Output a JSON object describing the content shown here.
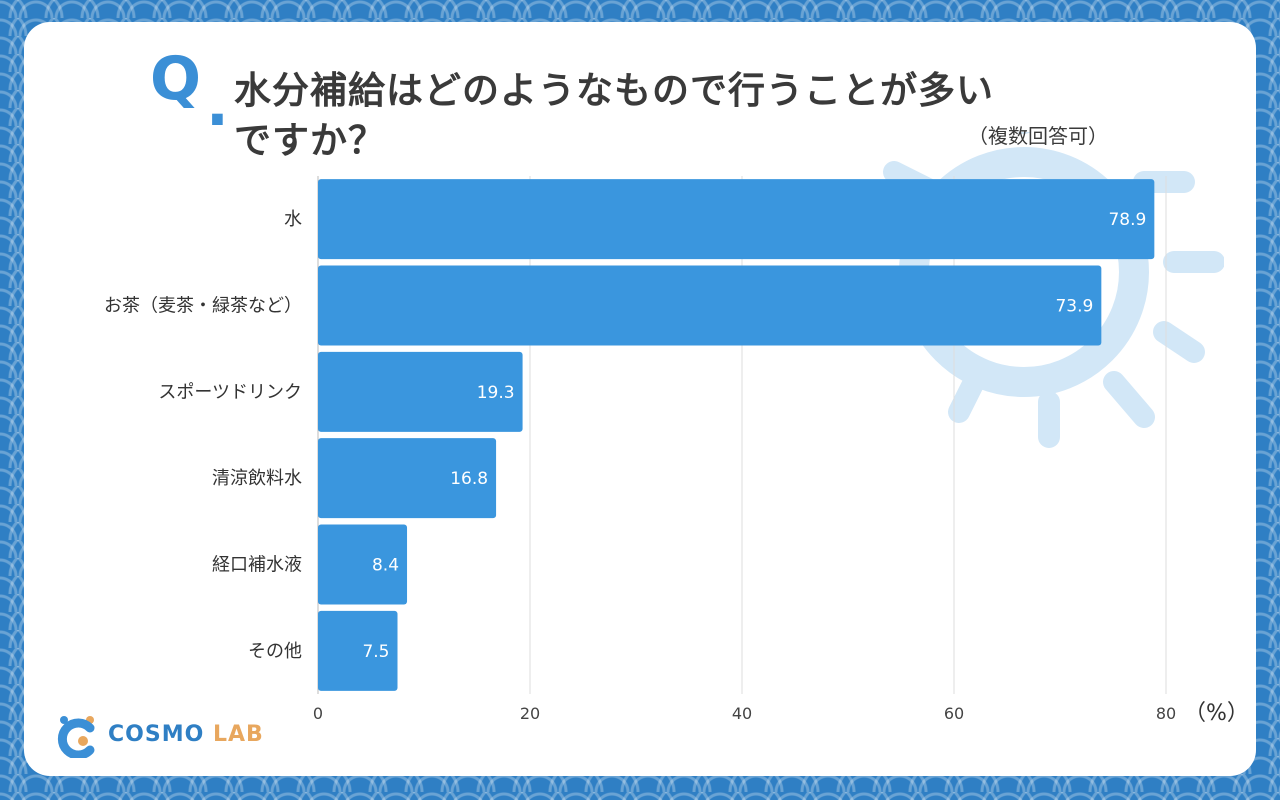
{
  "question": {
    "q_mark": "Q",
    "line1": "水分補給はどのようなもので行うことが多い",
    "line2": "ですか？",
    "note": "（複数回答可）"
  },
  "chart_data": {
    "type": "bar",
    "orientation": "horizontal",
    "categories": [
      "水",
      "お茶（麦茶・緑茶など）",
      "スポーツドリンク",
      "清涼飲料水",
      "経口補水液",
      "その他"
    ],
    "values": [
      78.9,
      73.9,
      19.3,
      16.8,
      8.4,
      7.5
    ],
    "xlim": [
      0,
      80
    ],
    "xticks": [
      "0",
      "20",
      "40",
      "60",
      "80"
    ],
    "unit": "（%）",
    "bar_color": "#3a96de",
    "grid": true
  },
  "logo": {
    "part1": "COSMO",
    "part2": "LAB",
    "primary_color": "#2f7fc4",
    "accent_color": "#e8a75e"
  }
}
